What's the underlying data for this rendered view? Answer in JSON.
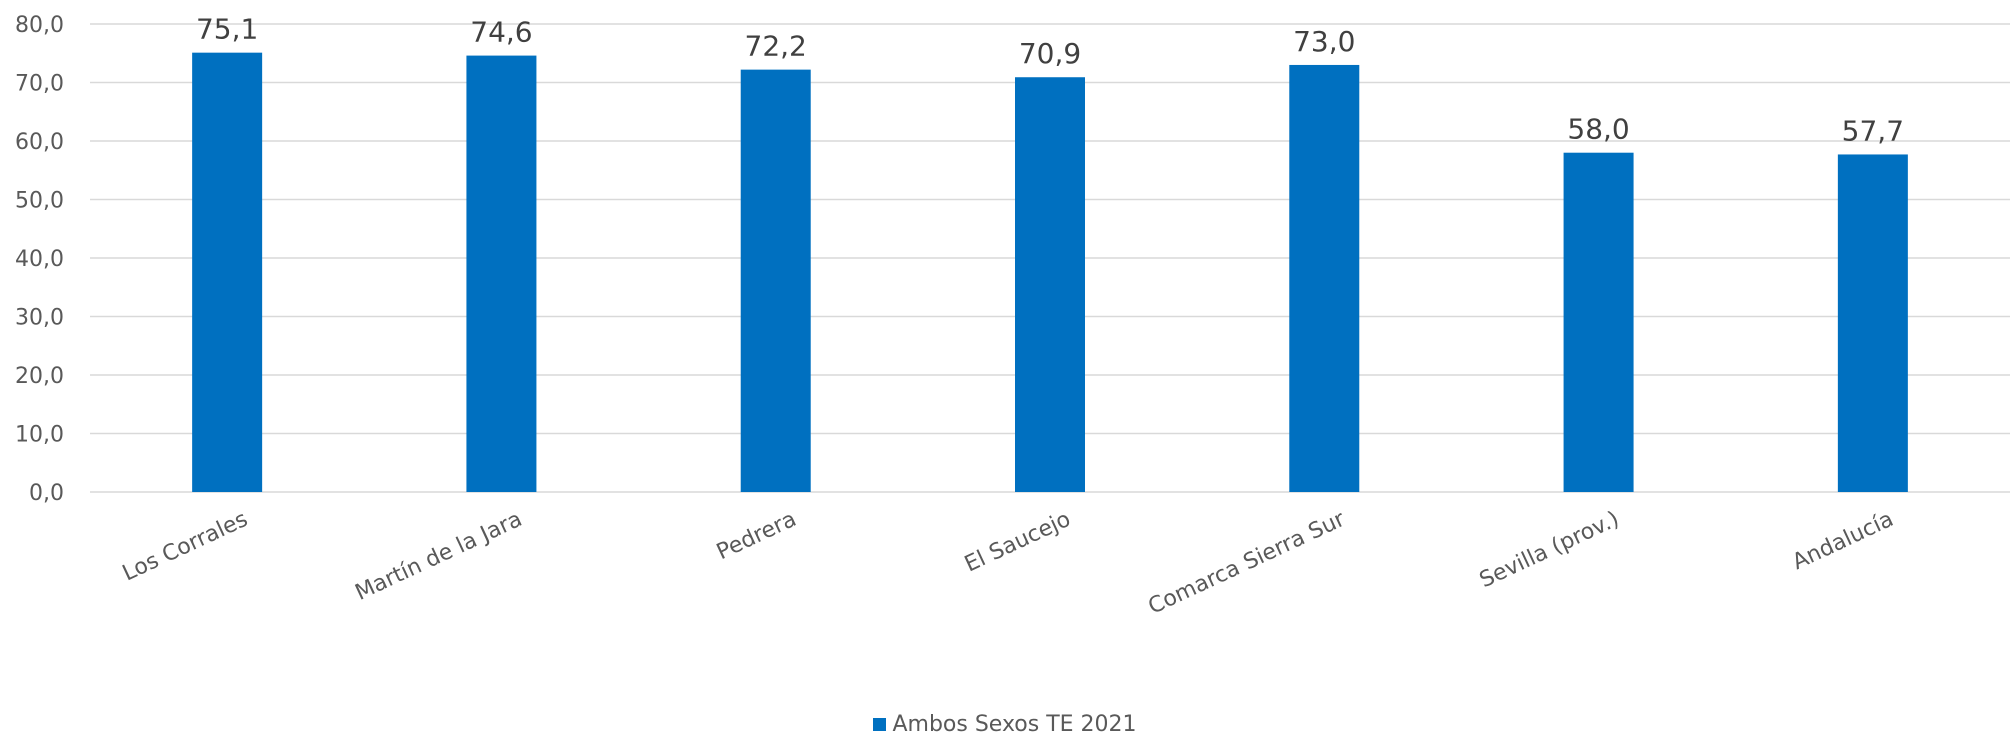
{
  "chart_data": {
    "type": "bar",
    "categories": [
      "Los Corrales",
      "Martín de la Jara",
      "Pedrera",
      "El Saucejo",
      "Comarca Sierra Sur",
      "Sevilla (prov.)",
      "Andalucía"
    ],
    "series": [
      {
        "name": "Ambos Sexos TE 2021",
        "values": [
          75.1,
          74.6,
          72.2,
          70.9,
          73.0,
          58.0,
          57.7
        ]
      }
    ],
    "data_labels": [
      "75,1",
      "74,6",
      "72,2",
      "70,9",
      "73,0",
      "58,0",
      "57,7"
    ],
    "y_ticks": [
      "0,0",
      "10,0",
      "20,0",
      "30,0",
      "40,0",
      "50,0",
      "60,0",
      "70,0",
      "80,0"
    ],
    "ylim": [
      0,
      80
    ],
    "grid": true,
    "legend_position": "bottom",
    "bar_color": "#0070C0",
    "grid_color": "#D9D9D9"
  }
}
